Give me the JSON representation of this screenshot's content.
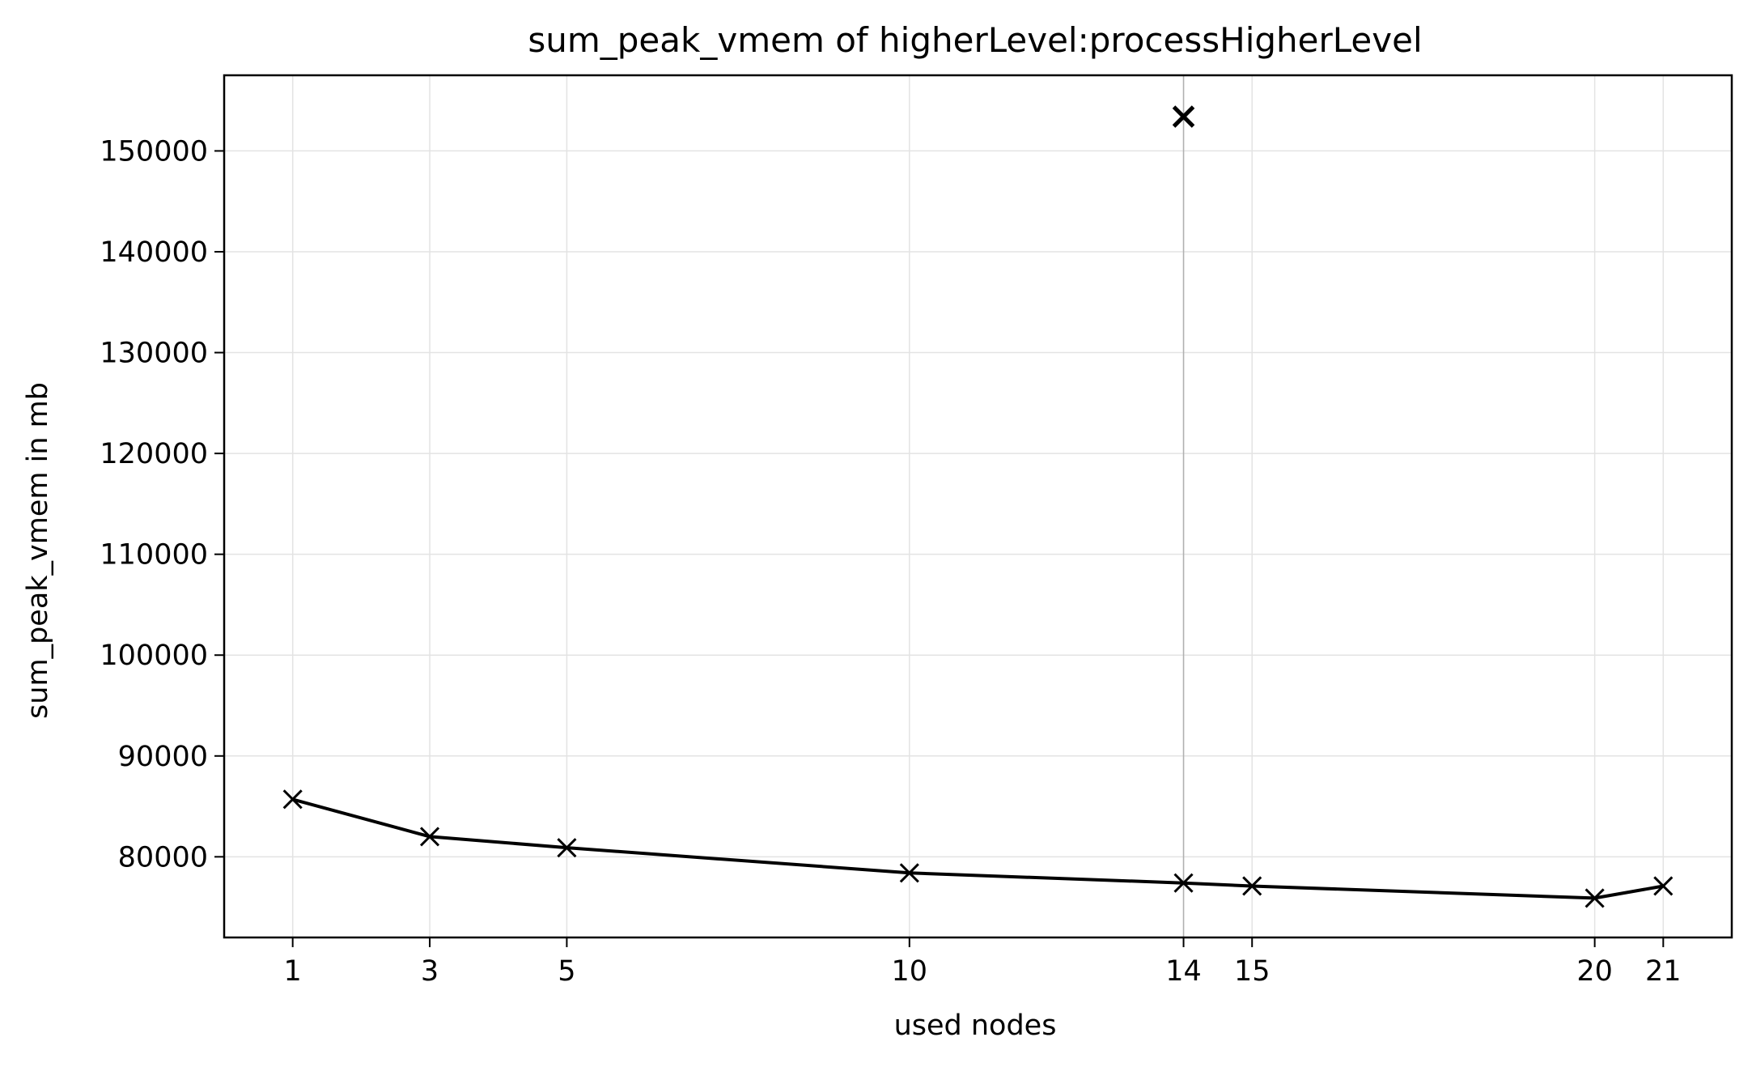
{
  "chart_data": {
    "type": "line",
    "title": "sum_peak_vmem of higherLevel:processHigherLevel",
    "xlabel": "used nodes",
    "ylabel": "sum_peak_vmem in mb",
    "x_ticks": [
      1,
      3,
      5,
      10,
      14,
      15,
      20,
      21
    ],
    "y_ticks": [
      80000,
      90000,
      100000,
      110000,
      120000,
      130000,
      140000,
      150000
    ],
    "xlim": [
      0,
      22
    ],
    "ylim": [
      72000,
      157500
    ],
    "grid": true,
    "series": [
      {
        "marker": "x",
        "color": "#000000",
        "points": [
          {
            "x": 1,
            "y": 85700
          },
          {
            "x": 3,
            "y": 82000
          },
          {
            "x": 5,
            "y": 80900
          },
          {
            "x": 10,
            "y": 78400
          },
          {
            "x": 14,
            "y": 77400
          },
          {
            "x": 15,
            "y": 77100
          },
          {
            "x": 20,
            "y": 75900
          },
          {
            "x": 21,
            "y": 77100
          }
        ]
      }
    ],
    "highlight_point": {
      "x": 14,
      "y": 153400,
      "marker": "x",
      "color": "#000000"
    },
    "highlight_vline_x": 14
  }
}
